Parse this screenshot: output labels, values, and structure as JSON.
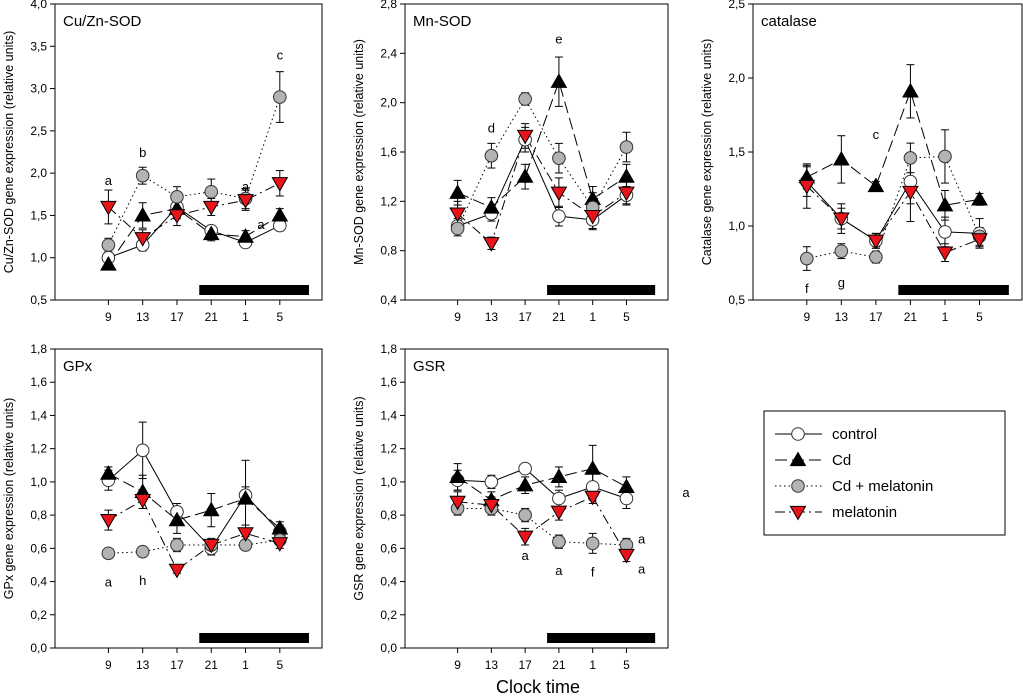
{
  "figure": {
    "xlabel": "Clock time",
    "legend": [
      {
        "name": "control",
        "style": "solid",
        "marker": "circle",
        "fill": "#ffffff",
        "stroke": "#333333"
      },
      {
        "name": "Cd",
        "style": "longdash",
        "marker": "triangle-up",
        "fill": "#000000",
        "stroke": "#000000"
      },
      {
        "name": "Cd + melatonin",
        "style": "dotted",
        "marker": "circle",
        "fill": "#b3b3b3",
        "stroke": "#333333"
      },
      {
        "name": "melatonin",
        "style": "dashdot",
        "marker": "triangle-down",
        "fill": "#e8141a",
        "stroke": "#000000"
      }
    ],
    "colors": {
      "black": "#000000",
      "gray": "#b3b3b3",
      "red": "#e8141a",
      "white": "#ffffff"
    },
    "stray_annotation": "a"
  },
  "chart_data": [
    {
      "type": "line",
      "title": "Cu/Zn-SOD",
      "ylabel": "Cu/Zn-SOD gene expression (relative units)",
      "xlabel": "Clock time",
      "categories": [
        "9",
        "13",
        "17",
        "21",
        "1",
        "5"
      ],
      "ylim": [
        0.5,
        4.0
      ],
      "yticks": [
        "0,5",
        "1,0",
        "1,5",
        "2,0",
        "2,5",
        "3,0",
        "3,5",
        "4,0"
      ],
      "ytick_values": [
        0.5,
        1.0,
        1.5,
        2.0,
        2.5,
        3.0,
        3.5,
        4.0
      ],
      "dark_phase": [
        3,
        5
      ],
      "series": [
        {
          "name": "control",
          "values": [
            1.0,
            1.15,
            1.6,
            1.32,
            1.18,
            1.38
          ],
          "errors": [
            0.05,
            0.07,
            0.1,
            0.06,
            0.06,
            0.06
          ]
        },
        {
          "name": "Cd",
          "values": [
            0.92,
            1.5,
            1.58,
            1.28,
            1.25,
            1.5
          ],
          "errors": [
            0.05,
            0.15,
            0.12,
            0.08,
            0.07,
            0.08
          ]
        },
        {
          "name": "Cd + melatonin",
          "values": [
            1.15,
            1.97,
            1.72,
            1.78,
            1.7,
            2.9
          ],
          "errors": [
            0.08,
            0.1,
            0.12,
            0.15,
            0.12,
            0.3
          ]
        },
        {
          "name": "melatonin",
          "values": [
            1.6,
            1.23,
            1.5,
            1.6,
            1.68,
            1.88
          ],
          "errors": [
            0.2,
            0.1,
            0.12,
            0.1,
            0.12,
            0.15
          ]
        }
      ],
      "annotations": [
        {
          "text": "a",
          "x": 0,
          "y": 1.92
        },
        {
          "text": "b",
          "x": 1,
          "y": 2.25
        },
        {
          "text": "a",
          "x": 4,
          "y": 1.85
        },
        {
          "text": "a",
          "x": 4.45,
          "y": 1.4
        },
        {
          "text": "c",
          "x": 5,
          "y": 3.4
        }
      ]
    },
    {
      "type": "line",
      "title": "Mn-SOD",
      "ylabel": "Mn-SOD gene expression (relative units)",
      "xlabel": "Clock time",
      "categories": [
        "9",
        "13",
        "17",
        "21",
        "1",
        "5"
      ],
      "ylim": [
        0.4,
        2.8
      ],
      "yticks": [
        "0,4",
        "0,8",
        "1,2",
        "1,6",
        "2,0",
        "2,4",
        "2,8"
      ],
      "ytick_values": [
        0.4,
        0.8,
        1.2,
        1.6,
        2.0,
        2.4,
        2.8
      ],
      "dark_phase": [
        3,
        5
      ],
      "series": [
        {
          "name": "control",
          "values": [
            1.0,
            1.1,
            1.7,
            1.08,
            1.05,
            1.25
          ],
          "errors": [
            0.06,
            0.06,
            0.1,
            0.08,
            0.08,
            0.07
          ]
        },
        {
          "name": "Cd",
          "values": [
            1.27,
            1.15,
            1.4,
            2.17,
            1.22,
            1.4
          ],
          "errors": [
            0.1,
            0.08,
            0.1,
            0.2,
            0.1,
            0.1
          ]
        },
        {
          "name": "Cd + melatonin",
          "values": [
            0.98,
            1.57,
            2.03,
            1.55,
            1.15,
            1.64
          ],
          "errors": [
            0.06,
            0.1,
            0.05,
            0.12,
            0.12,
            0.12
          ]
        },
        {
          "name": "melatonin",
          "values": [
            1.1,
            0.86,
            1.73,
            1.27,
            1.08,
            1.27
          ],
          "errors": [
            0.1,
            0.05,
            0.1,
            0.12,
            0.1,
            0.1
          ]
        }
      ],
      "annotations": [
        {
          "text": "d",
          "x": 1,
          "y": 1.8
        },
        {
          "text": "e",
          "x": 3,
          "y": 2.52
        }
      ]
    },
    {
      "type": "line",
      "title": "catalase",
      "ylabel": "Catalase gene expression (relative units)",
      "xlabel": "Clock time",
      "categories": [
        "9",
        "13",
        "17",
        "21",
        "1",
        "5"
      ],
      "ylim": [
        0.5,
        2.5
      ],
      "yticks": [
        "0,5",
        "1,0",
        "1,5",
        "2,0",
        "2,5"
      ],
      "ytick_values": [
        0.5,
        1.0,
        1.5,
        2.0,
        2.5
      ],
      "dark_phase": [
        3,
        5
      ],
      "series": [
        {
          "name": "control",
          "values": [
            1.3,
            1.05,
            0.9,
            1.3,
            0.96,
            0.95
          ],
          "errors": [
            0.1,
            0.07,
            0.05,
            0.15,
            0.1,
            0.1
          ]
        },
        {
          "name": "Cd",
          "values": [
            1.33,
            1.45,
            1.27,
            1.91,
            1.14,
            1.18
          ],
          "errors": [
            0.08,
            0.16,
            0.03,
            0.18,
            0.1,
            0.04
          ]
        },
        {
          "name": "Cd + melatonin",
          "values": [
            0.78,
            0.83,
            0.79,
            1.46,
            1.47,
            0.93
          ],
          "errors": [
            0.08,
            0.05,
            0.04,
            0.1,
            0.18,
            0.06
          ]
        },
        {
          "name": "melatonin",
          "values": [
            1.27,
            1.05,
            0.9,
            1.23,
            0.82,
            0.91
          ],
          "errors": [
            0.15,
            0.1,
            0.05,
            0.2,
            0.06,
            0.05
          ]
        }
      ],
      "annotations": [
        {
          "text": "c",
          "x": 2,
          "y": 1.62
        },
        {
          "text": "f",
          "x": 0,
          "y": 0.58
        },
        {
          "text": "g",
          "x": 1,
          "y": 0.62
        }
      ]
    },
    {
      "type": "line",
      "title": "GPx",
      "ylabel": "GPx gene expression (relative units)",
      "xlabel": "Clock time",
      "categories": [
        "9",
        "13",
        "17",
        "21",
        "1",
        "5"
      ],
      "ylim": [
        0.0,
        1.8
      ],
      "yticks": [
        "0,0",
        "0,2",
        "0,4",
        "0,6",
        "0,8",
        "1,0",
        "1,2",
        "1,4",
        "1,6",
        "1,8"
      ],
      "ytick_values": [
        0.0,
        0.2,
        0.4,
        0.6,
        0.8,
        1.0,
        1.2,
        1.4,
        1.6,
        1.8
      ],
      "dark_phase": [
        3,
        5
      ],
      "series": [
        {
          "name": "control",
          "values": [
            1.01,
            1.19,
            0.82,
            0.6,
            0.92,
            0.7
          ],
          "errors": [
            0.06,
            0.17,
            0.05,
            0.04,
            0.05,
            0.04
          ]
        },
        {
          "name": "Cd",
          "values": [
            1.05,
            0.94,
            0.77,
            0.83,
            0.9,
            0.72
          ],
          "errors": [
            0.04,
            0.1,
            0.08,
            0.1,
            0.23,
            0.04
          ]
        },
        {
          "name": "Cd + melatonin",
          "values": [
            0.57,
            0.58,
            0.62,
            0.62,
            0.62,
            0.65
          ],
          "errors": [
            0.02,
            0.02,
            0.04,
            0.03,
            0.03,
            0.03
          ]
        },
        {
          "name": "melatonin",
          "values": [
            0.77,
            0.89,
            0.47,
            0.62,
            0.69,
            0.63
          ],
          "errors": [
            0.06,
            0.05,
            0.02,
            0.04,
            0.05,
            0.03
          ]
        }
      ],
      "annotations": [
        {
          "text": "a",
          "x": 0,
          "y": 0.4
        },
        {
          "text": "h",
          "x": 1,
          "y": 0.41
        }
      ]
    },
    {
      "type": "line",
      "title": "GSR",
      "ylabel": "GSR gene expression (relative units)",
      "xlabel": "Clock time",
      "categories": [
        "9",
        "13",
        "17",
        "21",
        "1",
        "5"
      ],
      "ylim": [
        0.0,
        1.8
      ],
      "yticks": [
        "0,0",
        "0,2",
        "0,4",
        "0,6",
        "0,8",
        "1,0",
        "1,2",
        "1,4",
        "1,6",
        "1,8"
      ],
      "ytick_values": [
        0.0,
        0.2,
        0.4,
        0.6,
        0.8,
        1.0,
        1.2,
        1.4,
        1.6,
        1.8
      ],
      "dark_phase": [
        3,
        5
      ],
      "series": [
        {
          "name": "control",
          "values": [
            1.01,
            1.0,
            1.08,
            0.9,
            0.97,
            0.9
          ],
          "errors": [
            0.06,
            0.04,
            0.03,
            0.05,
            0.08,
            0.06
          ]
        },
        {
          "name": "Cd",
          "values": [
            1.03,
            0.89,
            0.98,
            1.03,
            1.08,
            0.97
          ],
          "errors": [
            0.08,
            0.05,
            0.05,
            0.06,
            0.14,
            0.06
          ]
        },
        {
          "name": "Cd + melatonin",
          "values": [
            0.84,
            0.84,
            0.8,
            0.64,
            0.63,
            0.62
          ],
          "errors": [
            0.04,
            0.04,
            0.04,
            0.04,
            0.06,
            0.04
          ]
        },
        {
          "name": "melatonin",
          "values": [
            0.88,
            0.86,
            0.67,
            0.82,
            0.91,
            0.56
          ],
          "errors": [
            0.06,
            0.05,
            0.05,
            0.05,
            0.04,
            0.04
          ]
        }
      ],
      "annotations": [
        {
          "text": "a",
          "x": 2,
          "y": 0.56
        },
        {
          "text": "a",
          "x": 3,
          "y": 0.47
        },
        {
          "text": "f",
          "x": 4,
          "y": 0.46
        },
        {
          "text": "a",
          "x": 5.45,
          "y": 0.66
        },
        {
          "text": "a",
          "x": 5.45,
          "y": 0.48
        }
      ]
    }
  ]
}
